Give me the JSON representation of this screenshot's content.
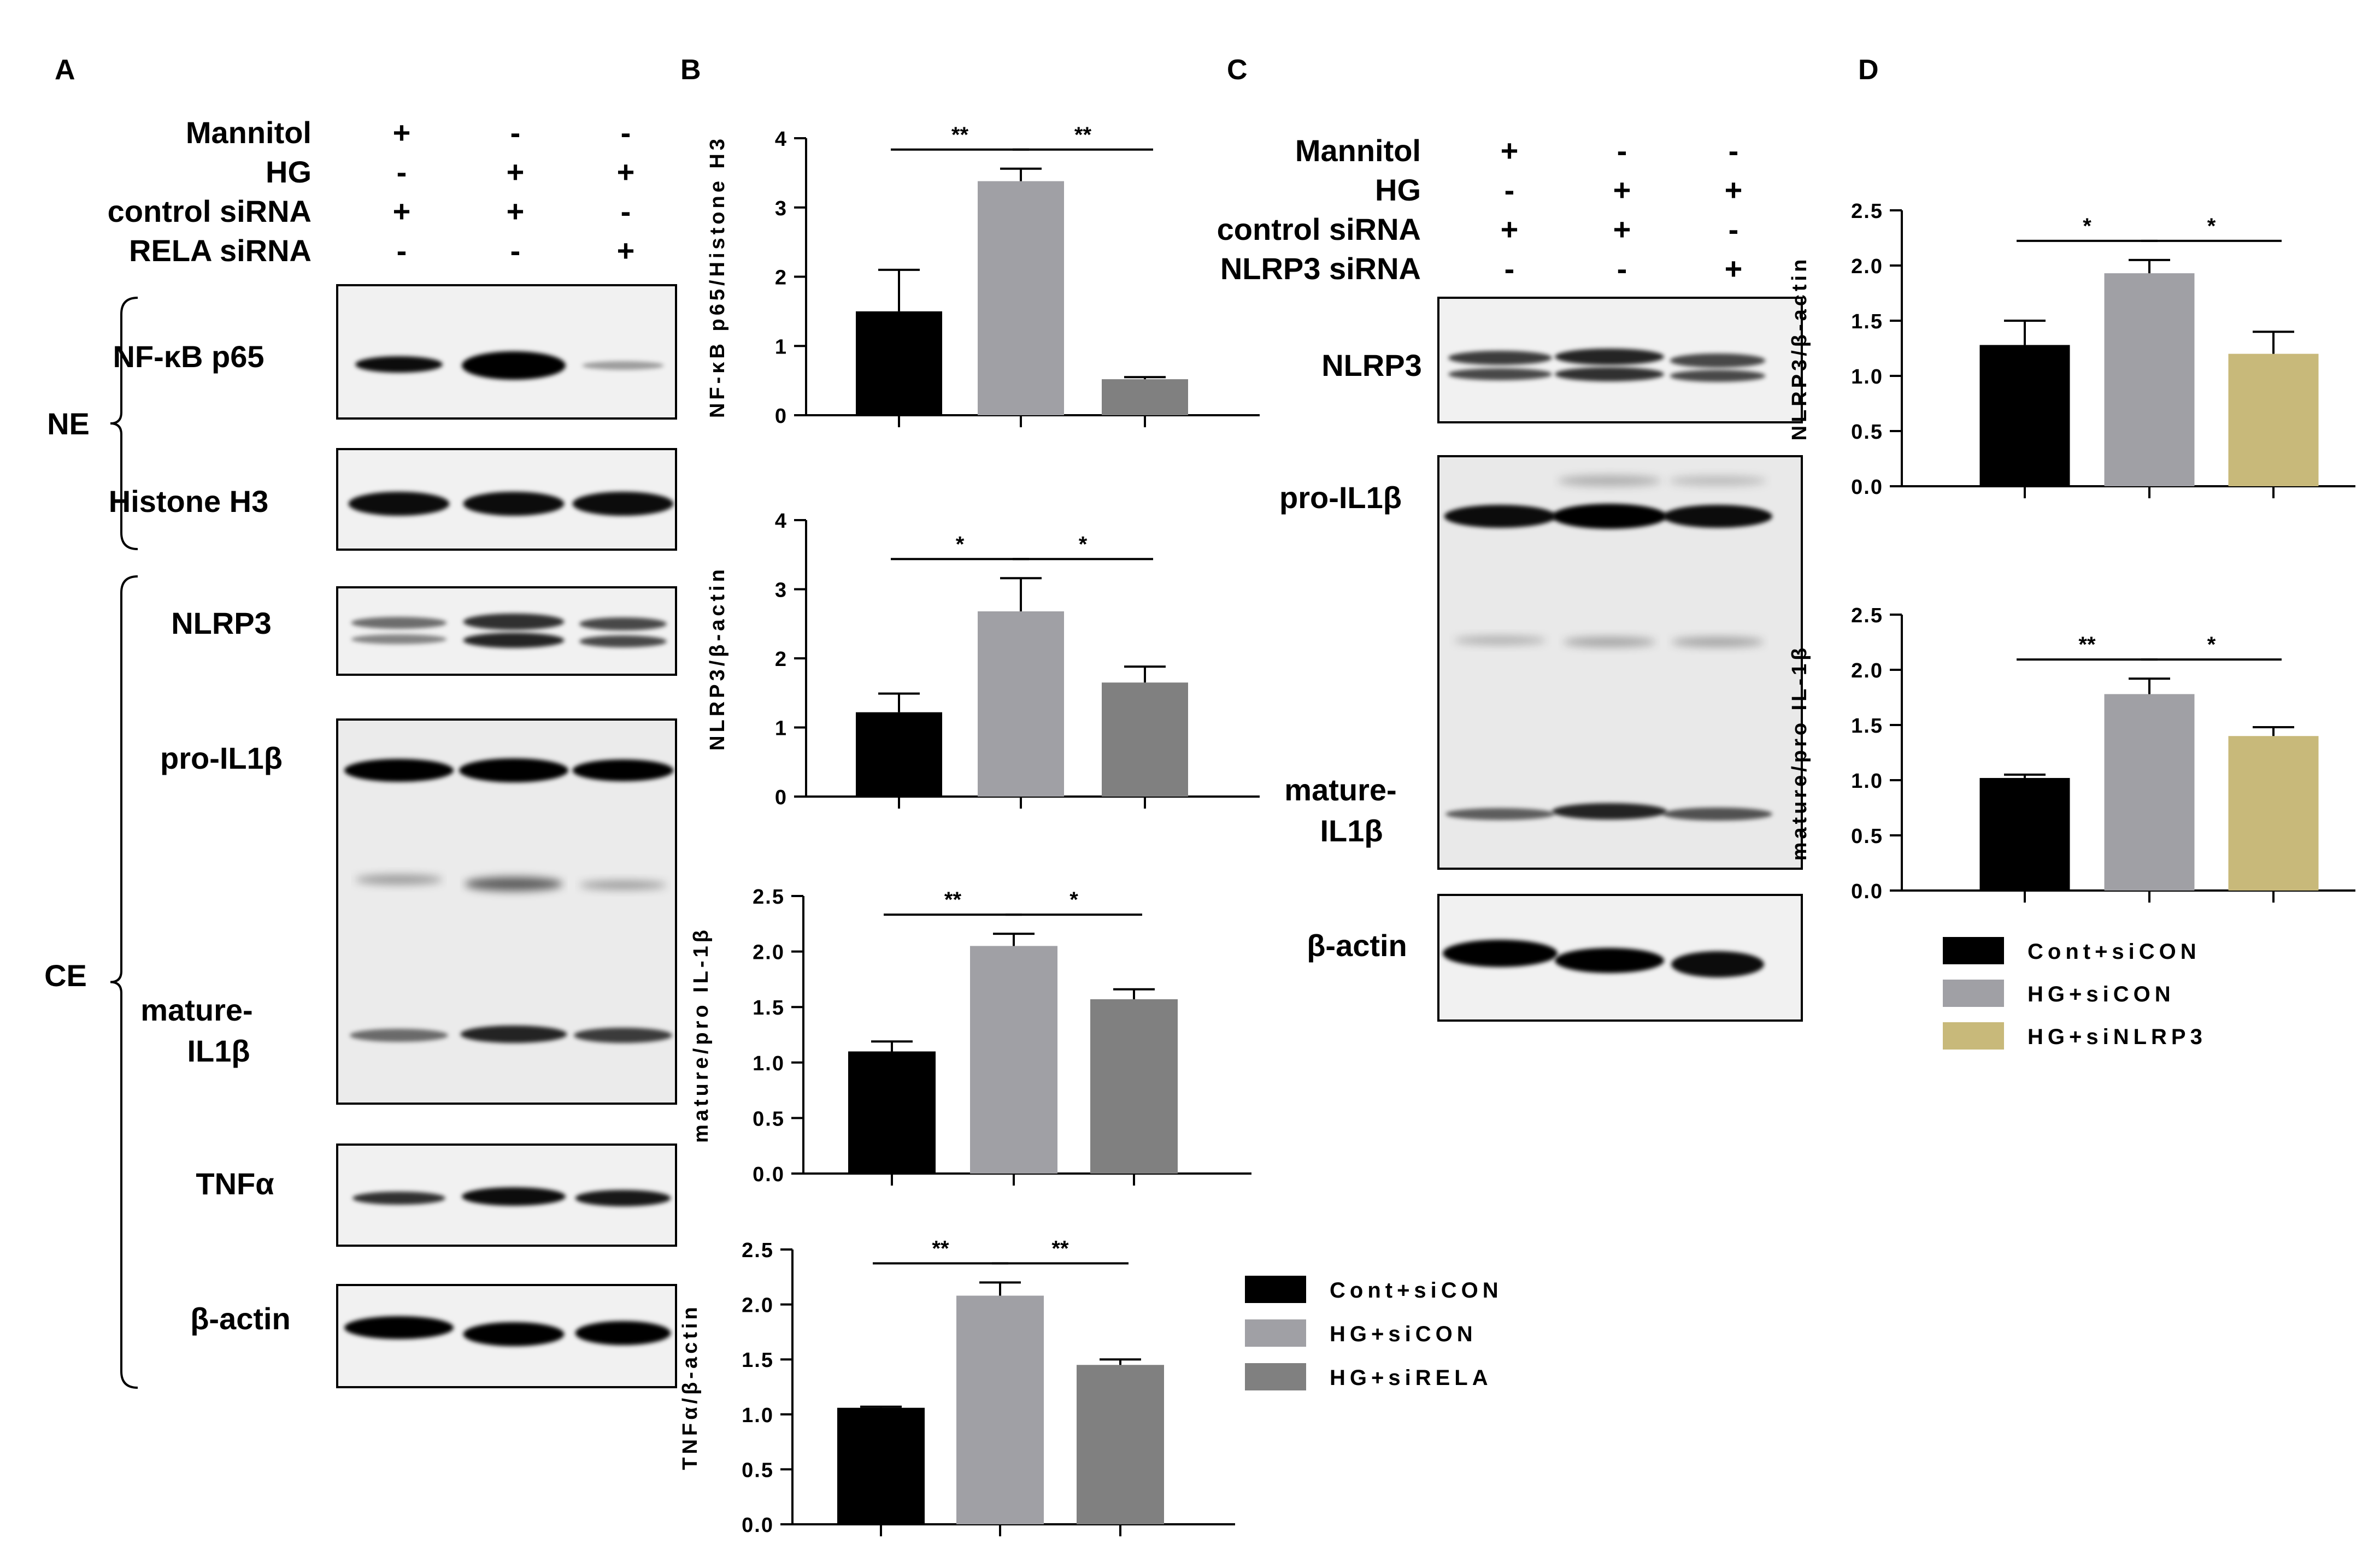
{
  "panel_letters": [
    "A",
    "B",
    "C",
    "D"
  ],
  "panelA": {
    "conditions": [
      {
        "name": "Mannitol",
        "marks": [
          "+",
          "-",
          "-"
        ]
      },
      {
        "name": "HG",
        "marks": [
          "-",
          "+",
          "+"
        ]
      },
      {
        "name": "control siRNA",
        "marks": [
          "+",
          "+",
          "-"
        ]
      },
      {
        "name": "RELA siRNA",
        "marks": [
          "-",
          "-",
          "+"
        ]
      }
    ],
    "groups": [
      "NE",
      "CE"
    ],
    "blots": [
      "NF-κB p65",
      "Histone H3",
      "NLRP3",
      "pro-IL1β",
      "mature-\nIL1β",
      "TNFα",
      "β-actin"
    ]
  },
  "panelC": {
    "conditions": [
      {
        "name": "Mannitol",
        "marks": [
          "+",
          "-",
          "-"
        ]
      },
      {
        "name": "HG",
        "marks": [
          "-",
          "+",
          "+"
        ]
      },
      {
        "name": "control siRNA",
        "marks": [
          "+",
          "+",
          "-"
        ]
      },
      {
        "name": "NLRP3 siRNA",
        "marks": [
          "-",
          "-",
          "+"
        ]
      }
    ],
    "blots": [
      "NLRP3",
      "pro-IL1β",
      "mature-\nIL1β",
      "β-actin"
    ]
  },
  "colors": {
    "cont": "#000000",
    "hg": "#a0a0a5",
    "sirela": "#808080",
    "sinlrp3": "#c8b97a"
  },
  "legendB": [
    "Cont+siCON",
    "HG+siCON",
    "HG+siRELA"
  ],
  "legendD": [
    "Cont+siCON",
    "HG+siCON",
    "HG+siNLRP3"
  ],
  "chart_data": [
    {
      "id": "B1",
      "type": "bar",
      "ylabel": "NF-κB p65/Histone H3",
      "ylim": [
        0,
        4
      ],
      "yticks": [
        "0",
        "1",
        "2",
        "3",
        "4"
      ],
      "tick_values": [
        0,
        1,
        2,
        3,
        4
      ],
      "values": [
        1.5,
        3.38,
        0.52
      ],
      "errors": [
        0.6,
        0.18,
        0.03
      ],
      "series_colors": [
        "cont",
        "hg",
        "sirela"
      ],
      "significance": [
        {
          "from": 0,
          "to": 1,
          "label": "**"
        },
        {
          "from": 1,
          "to": 2,
          "label": "**"
        }
      ]
    },
    {
      "id": "B2",
      "type": "bar",
      "ylabel": "NLRP3/β-actin",
      "ylim": [
        0,
        4
      ],
      "yticks": [
        "0",
        "1",
        "2",
        "3",
        "4"
      ],
      "tick_values": [
        0,
        1,
        2,
        3,
        4
      ],
      "values": [
        1.22,
        2.68,
        1.65
      ],
      "errors": [
        0.27,
        0.48,
        0.23
      ],
      "series_colors": [
        "cont",
        "hg",
        "sirela"
      ],
      "significance": [
        {
          "from": 0,
          "to": 1,
          "label": "*"
        },
        {
          "from": 1,
          "to": 2,
          "label": "*"
        }
      ]
    },
    {
      "id": "B3",
      "type": "bar",
      "ylabel": "mature/pro IL-1β",
      "ylim": [
        0,
        2.5
      ],
      "yticks": [
        "0.0",
        "0.5",
        "1.0",
        "1.5",
        "2.0",
        "2.5"
      ],
      "tick_values": [
        0,
        0.5,
        1,
        1.5,
        2,
        2.5
      ],
      "values": [
        1.1,
        2.05,
        1.57
      ],
      "errors": [
        0.09,
        0.11,
        0.09
      ],
      "series_colors": [
        "cont",
        "hg",
        "sirela"
      ],
      "significance": [
        {
          "from": 0,
          "to": 1,
          "label": "**"
        },
        {
          "from": 1,
          "to": 2,
          "label": "*"
        }
      ]
    },
    {
      "id": "B4",
      "type": "bar",
      "ylabel": "TNFα/β-actin",
      "ylim": [
        0,
        2.5
      ],
      "yticks": [
        "0.0",
        "0.5",
        "1.0",
        "1.5",
        "2.0",
        "2.5"
      ],
      "tick_values": [
        0,
        0.5,
        1,
        1.5,
        2,
        2.5
      ],
      "values": [
        1.06,
        2.08,
        1.45
      ],
      "errors": [
        0.01,
        0.12,
        0.05
      ],
      "series_colors": [
        "cont",
        "hg",
        "sirela"
      ],
      "significance": [
        {
          "from": 0,
          "to": 1,
          "label": "**"
        },
        {
          "from": 1,
          "to": 2,
          "label": "**"
        }
      ]
    },
    {
      "id": "D1",
      "type": "bar",
      "ylabel": "NLRP3/β-actin",
      "ylim": [
        0,
        2.5
      ],
      "yticks": [
        "0.0",
        "0.5",
        "1.0",
        "1.5",
        "2.0",
        "2.5"
      ],
      "tick_values": [
        0,
        0.5,
        1,
        1.5,
        2,
        2.5
      ],
      "values": [
        1.28,
        1.93,
        1.2
      ],
      "errors": [
        0.22,
        0.12,
        0.2
      ],
      "series_colors": [
        "cont",
        "hg",
        "sinlrp3"
      ],
      "significance": [
        {
          "from": 0,
          "to": 1,
          "label": "*"
        },
        {
          "from": 1,
          "to": 2,
          "label": "*"
        }
      ]
    },
    {
      "id": "D2",
      "type": "bar",
      "ylabel": "mature/pro IL-1β",
      "ylim": [
        0,
        2.5
      ],
      "yticks": [
        "0.0",
        "0.5",
        "1.0",
        "1.5",
        "2.0",
        "2.5"
      ],
      "tick_values": [
        0,
        0.5,
        1,
        1.5,
        2,
        2.5
      ],
      "values": [
        1.02,
        1.78,
        1.4
      ],
      "errors": [
        0.03,
        0.14,
        0.08
      ],
      "series_colors": [
        "cont",
        "hg",
        "sinlrp3"
      ],
      "significance": [
        {
          "from": 0,
          "to": 1,
          "label": "**"
        },
        {
          "from": 1,
          "to": 2,
          "label": "*"
        }
      ]
    }
  ]
}
